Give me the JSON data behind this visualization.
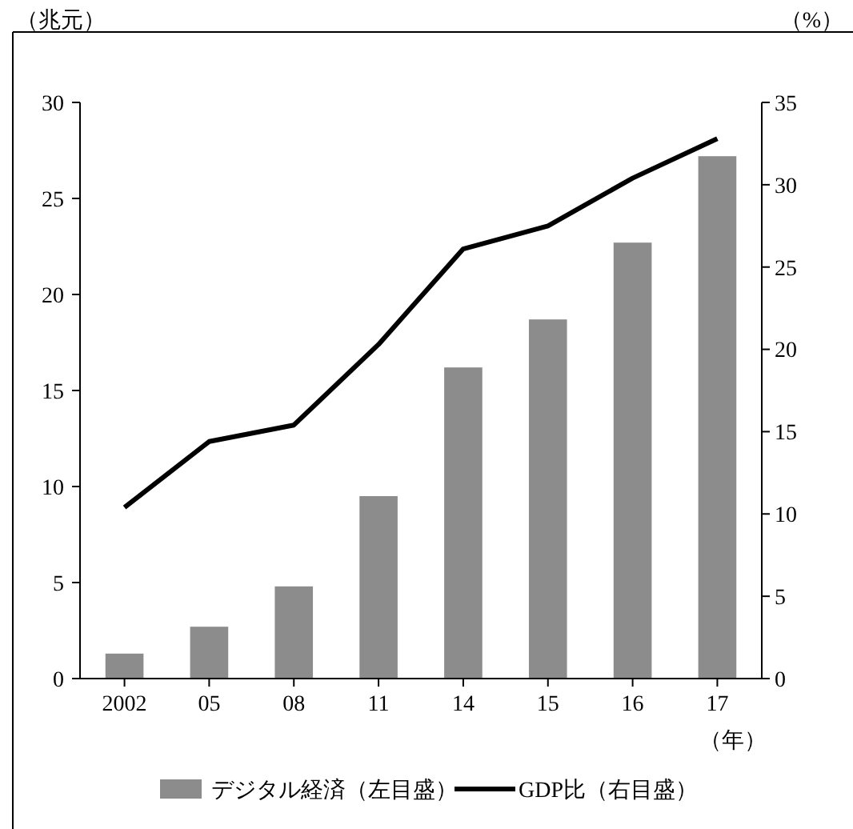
{
  "chart_data": {
    "type": "bar",
    "categories": [
      "2002",
      "05",
      "08",
      "11",
      "14",
      "15",
      "16",
      "17"
    ],
    "ylabel": "（兆元）",
    "y2label": "（%）",
    "xlabel": "（年）",
    "series": [
      {
        "name": "デジタル経済（左目盛）",
        "color": "#8c8c8c",
        "values": [
          1.3,
          2.7,
          4.8,
          9.5,
          16.2,
          18.7,
          22.7,
          27.2
        ]
      },
      {
        "name": "GDP比（右目盛）",
        "type": "line",
        "axis": "y2",
        "color": "#000000",
        "values": [
          10.4,
          14.4,
          15.4,
          20.3,
          26.1,
          27.5,
          30.4,
          32.8
        ]
      }
    ],
    "ylim": [
      0,
      30
    ],
    "yticks": [
      0,
      5,
      10,
      15,
      20,
      25,
      30
    ],
    "y2lim": [
      0,
      35
    ],
    "y2ticks": [
      0,
      5,
      10,
      15,
      20,
      25,
      30,
      35
    ],
    "grid": false,
    "legend": "bottom",
    "marker": "none",
    "line_style": "solid"
  }
}
